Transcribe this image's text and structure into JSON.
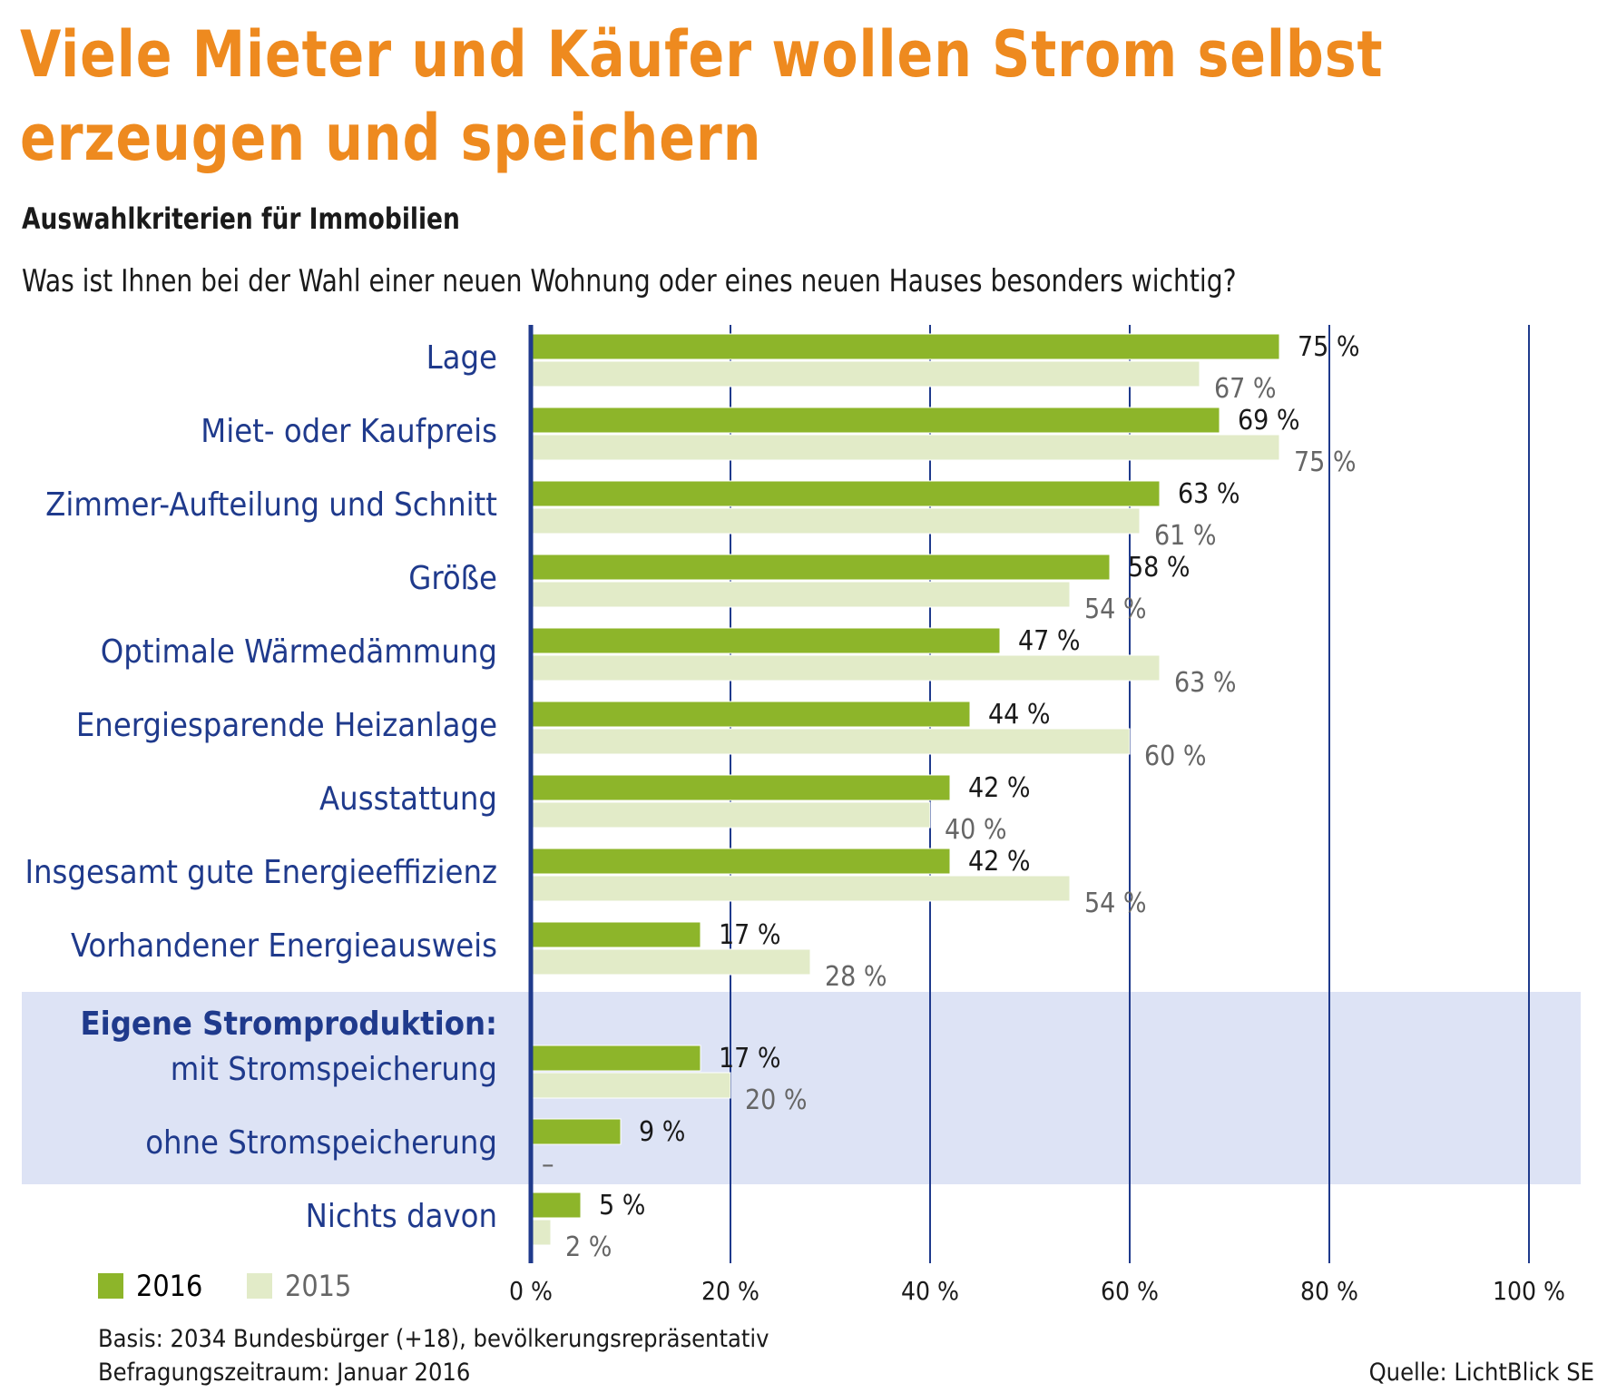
{
  "title": "Viele Mieter und Käufer wollen Strom selbst erzeugen und speichern",
  "subtitle": "Auswahlkriterien für Immobilien",
  "question": "Was ist Ihnen bei der Wahl einer neuen Wohnung oder eines neuen Hauses besonders wichtig?",
  "highlight_group_label": "Eigene Stromproduktion:",
  "footer": {
    "basis": "Basis: 2034 Bundesbürger (+18), bevölkerungsrepräsentativ",
    "period": "Befragungszeitraum: Januar 2016",
    "source": "Quelle: LichtBlick SE"
  },
  "colors": {
    "title": "#ee8a1f",
    "category_text": "#1f3a8c",
    "axis": "#1f3a8c",
    "bar_2016": "#8db52a",
    "bar_2015": "#e2ebc8",
    "label_2016": "#1a1a1a",
    "label_2015": "#666666",
    "highlight_band": "#dde3f5"
  },
  "chart_data": {
    "type": "bar",
    "orientation": "horizontal",
    "categories": [
      "Lage",
      "Miet- oder Kaufpreis",
      "Zimmer-Aufteilung und Schnitt",
      "Größe",
      "Optimale Wärmedämmung",
      "Energiesparende Heizanlage",
      "Ausstattung",
      "Insgesamt gute Energieeffizienz",
      "Vorhandener Energieausweis",
      "mit Stromspeicherung",
      "ohne Stromspeicherung",
      "Nichts davon"
    ],
    "series": [
      {
        "name": "2016",
        "values": [
          75,
          69,
          63,
          58,
          47,
          44,
          42,
          42,
          17,
          17,
          9,
          5
        ],
        "labels": [
          "75 %",
          "69 %",
          "63 %",
          "58 %",
          "47 %",
          "44 %",
          "42 %",
          "42 %",
          "17 %",
          "17 %",
          "9 %",
          "5 %"
        ]
      },
      {
        "name": "2015",
        "values": [
          67,
          75,
          61,
          54,
          63,
          60,
          40,
          54,
          28,
          20,
          null,
          2
        ],
        "labels": [
          "67 %",
          "75 %",
          "61 %",
          "54 %",
          "63 %",
          "60 %",
          "40 %",
          "54 %",
          "28 %",
          "20 %",
          "–",
          "2 %"
        ]
      }
    ],
    "highlighted_categories": [
      "mit Stromspeicherung",
      "ohne Stromspeicherung"
    ],
    "xlim": [
      0,
      100
    ],
    "xticks": [
      0,
      20,
      40,
      60,
      80,
      100
    ],
    "xtick_labels": [
      "0 %",
      "20 %",
      "40 %",
      "60 %",
      "80 %",
      "100 %"
    ],
    "grid": true,
    "legend_position": "bottom-left",
    "xlabel": "",
    "ylabel": ""
  }
}
